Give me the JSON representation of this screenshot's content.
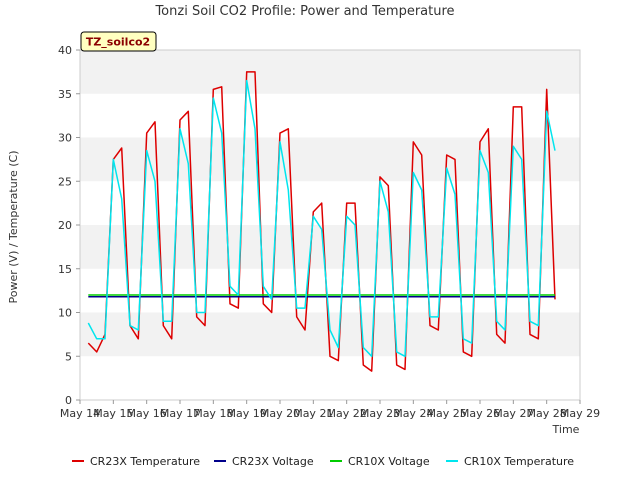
{
  "chart_data": {
    "type": "line",
    "title": "Tonzi Soil CO2 Profile: Power and Temperature",
    "xlabel": "Time",
    "ylabel": "Power (V) / Temperature (C)",
    "badge": "TZ_soilco2",
    "ylim": [
      0,
      40
    ],
    "yticks": [
      0,
      5,
      10,
      15,
      20,
      25,
      30,
      35,
      40
    ],
    "xlim": [
      "2013-05-14",
      "2013-05-29"
    ],
    "xtick_labels": [
      "May 14",
      "May 15",
      "May 16",
      "May 17",
      "May 18",
      "May 19",
      "May 20",
      "May 21",
      "May 22",
      "May 23",
      "May 24",
      "May 25",
      "May 26",
      "May 27",
      "May 28",
      "May 29"
    ],
    "grid": "horizontal bands",
    "legend_position": "bottom",
    "series": [
      {
        "name": "CR23X Temperature",
        "color": "#dd0000",
        "x": [
          "2013-05-14 06:00",
          "2013-05-14 12:00",
          "2013-05-14 18:00",
          "2013-05-15 00:00",
          "2013-05-15 06:00",
          "2013-05-15 12:00",
          "2013-05-15 18:00",
          "2013-05-16 00:00",
          "2013-05-16 06:00",
          "2013-05-16 12:00",
          "2013-05-16 18:00",
          "2013-05-17 00:00",
          "2013-05-17 06:00",
          "2013-05-17 12:00",
          "2013-05-17 18:00",
          "2013-05-18 00:00",
          "2013-05-18 06:00",
          "2013-05-18 12:00",
          "2013-05-18 18:00",
          "2013-05-19 00:00",
          "2013-05-19 06:00",
          "2013-05-19 12:00",
          "2013-05-19 18:00",
          "2013-05-20 00:00",
          "2013-05-20 06:00",
          "2013-05-20 12:00",
          "2013-05-20 18:00",
          "2013-05-21 00:00",
          "2013-05-21 06:00",
          "2013-05-21 12:00",
          "2013-05-21 18:00",
          "2013-05-22 00:00",
          "2013-05-22 06:00",
          "2013-05-22 12:00",
          "2013-05-22 18:00",
          "2013-05-23 00:00",
          "2013-05-23 06:00",
          "2013-05-23 12:00",
          "2013-05-23 18:00",
          "2013-05-24 00:00",
          "2013-05-24 06:00",
          "2013-05-24 12:00",
          "2013-05-24 18:00",
          "2013-05-25 00:00",
          "2013-05-25 06:00",
          "2013-05-25 12:00",
          "2013-05-25 18:00",
          "2013-05-26 00:00",
          "2013-05-26 06:00",
          "2013-05-26 12:00",
          "2013-05-26 18:00",
          "2013-05-27 00:00",
          "2013-05-27 06:00",
          "2013-05-27 12:00",
          "2013-05-27 18:00",
          "2013-05-28 00:00",
          "2013-05-28 06:00"
        ],
        "y": [
          6.5,
          5.5,
          7.5,
          27.5,
          28.8,
          8.5,
          7,
          30.5,
          31.8,
          8.5,
          7,
          32,
          33,
          9.5,
          8.5,
          35.5,
          35.8,
          11,
          10.5,
          37.5,
          37.5,
          11,
          10,
          30.5,
          31,
          9.5,
          8,
          21.5,
          22.5,
          5,
          4.5,
          22.5,
          22.5,
          4,
          3.3,
          25.5,
          24.5,
          4,
          3.5,
          29.5,
          28,
          8.5,
          8,
          28,
          27.5,
          5.5,
          5,
          29.5,
          31,
          7.5,
          6.5,
          33.5,
          33.5,
          7.5,
          7,
          35.5,
          11.5
        ]
      },
      {
        "name": "CR23X Voltage",
        "color": "#00008b",
        "x": [
          "2013-05-14 06:00",
          "2013-05-28 06:00"
        ],
        "y": [
          11.8,
          11.8
        ]
      },
      {
        "name": "CR10X Voltage",
        "color": "#00cc00",
        "x": [
          "2013-05-14 06:00",
          "2013-05-28 06:00"
        ],
        "y": [
          12.0,
          12.0
        ]
      },
      {
        "name": "CR10X Temperature",
        "color": "#00e5ee",
        "x": [
          "2013-05-14 06:00",
          "2013-05-14 12:00",
          "2013-05-14 18:00",
          "2013-05-15 00:00",
          "2013-05-15 06:00",
          "2013-05-15 12:00",
          "2013-05-15 18:00",
          "2013-05-16 00:00",
          "2013-05-16 06:00",
          "2013-05-16 12:00",
          "2013-05-16 18:00",
          "2013-05-17 00:00",
          "2013-05-17 06:00",
          "2013-05-17 12:00",
          "2013-05-17 18:00",
          "2013-05-18 00:00",
          "2013-05-18 06:00",
          "2013-05-18 12:00",
          "2013-05-18 18:00",
          "2013-05-19 00:00",
          "2013-05-19 06:00",
          "2013-05-19 12:00",
          "2013-05-19 18:00",
          "2013-05-20 00:00",
          "2013-05-20 06:00",
          "2013-05-20 12:00",
          "2013-05-20 18:00",
          "2013-05-21 00:00",
          "2013-05-21 06:00",
          "2013-05-21 12:00",
          "2013-05-21 18:00",
          "2013-05-22 00:00",
          "2013-05-22 06:00",
          "2013-05-22 12:00",
          "2013-05-22 18:00",
          "2013-05-23 00:00",
          "2013-05-23 06:00",
          "2013-05-23 12:00",
          "2013-05-23 18:00",
          "2013-05-24 00:00",
          "2013-05-24 06:00",
          "2013-05-24 12:00",
          "2013-05-24 18:00",
          "2013-05-25 00:00",
          "2013-05-25 06:00",
          "2013-05-25 12:00",
          "2013-05-25 18:00",
          "2013-05-26 00:00",
          "2013-05-26 06:00",
          "2013-05-26 12:00",
          "2013-05-26 18:00",
          "2013-05-27 00:00",
          "2013-05-27 06:00",
          "2013-05-27 12:00",
          "2013-05-27 18:00",
          "2013-05-28 00:00",
          "2013-05-28 06:00"
        ],
        "y": [
          8.8,
          7,
          7,
          27.5,
          23,
          8.5,
          8,
          28.5,
          25,
          9,
          9,
          31,
          27,
          10,
          10,
          34.5,
          30.5,
          13,
          12,
          36.5,
          31,
          13,
          11.5,
          29.5,
          24,
          10.5,
          10.5,
          21,
          19.5,
          8,
          6,
          21,
          20,
          6,
          5,
          25,
          21.5,
          5.5,
          5,
          26,
          24,
          9.5,
          9.5,
          26.5,
          23.5,
          7,
          6.5,
          28.5,
          26,
          9,
          8,
          29,
          27.5,
          9,
          8.5,
          33,
          28.5
        ]
      }
    ]
  }
}
